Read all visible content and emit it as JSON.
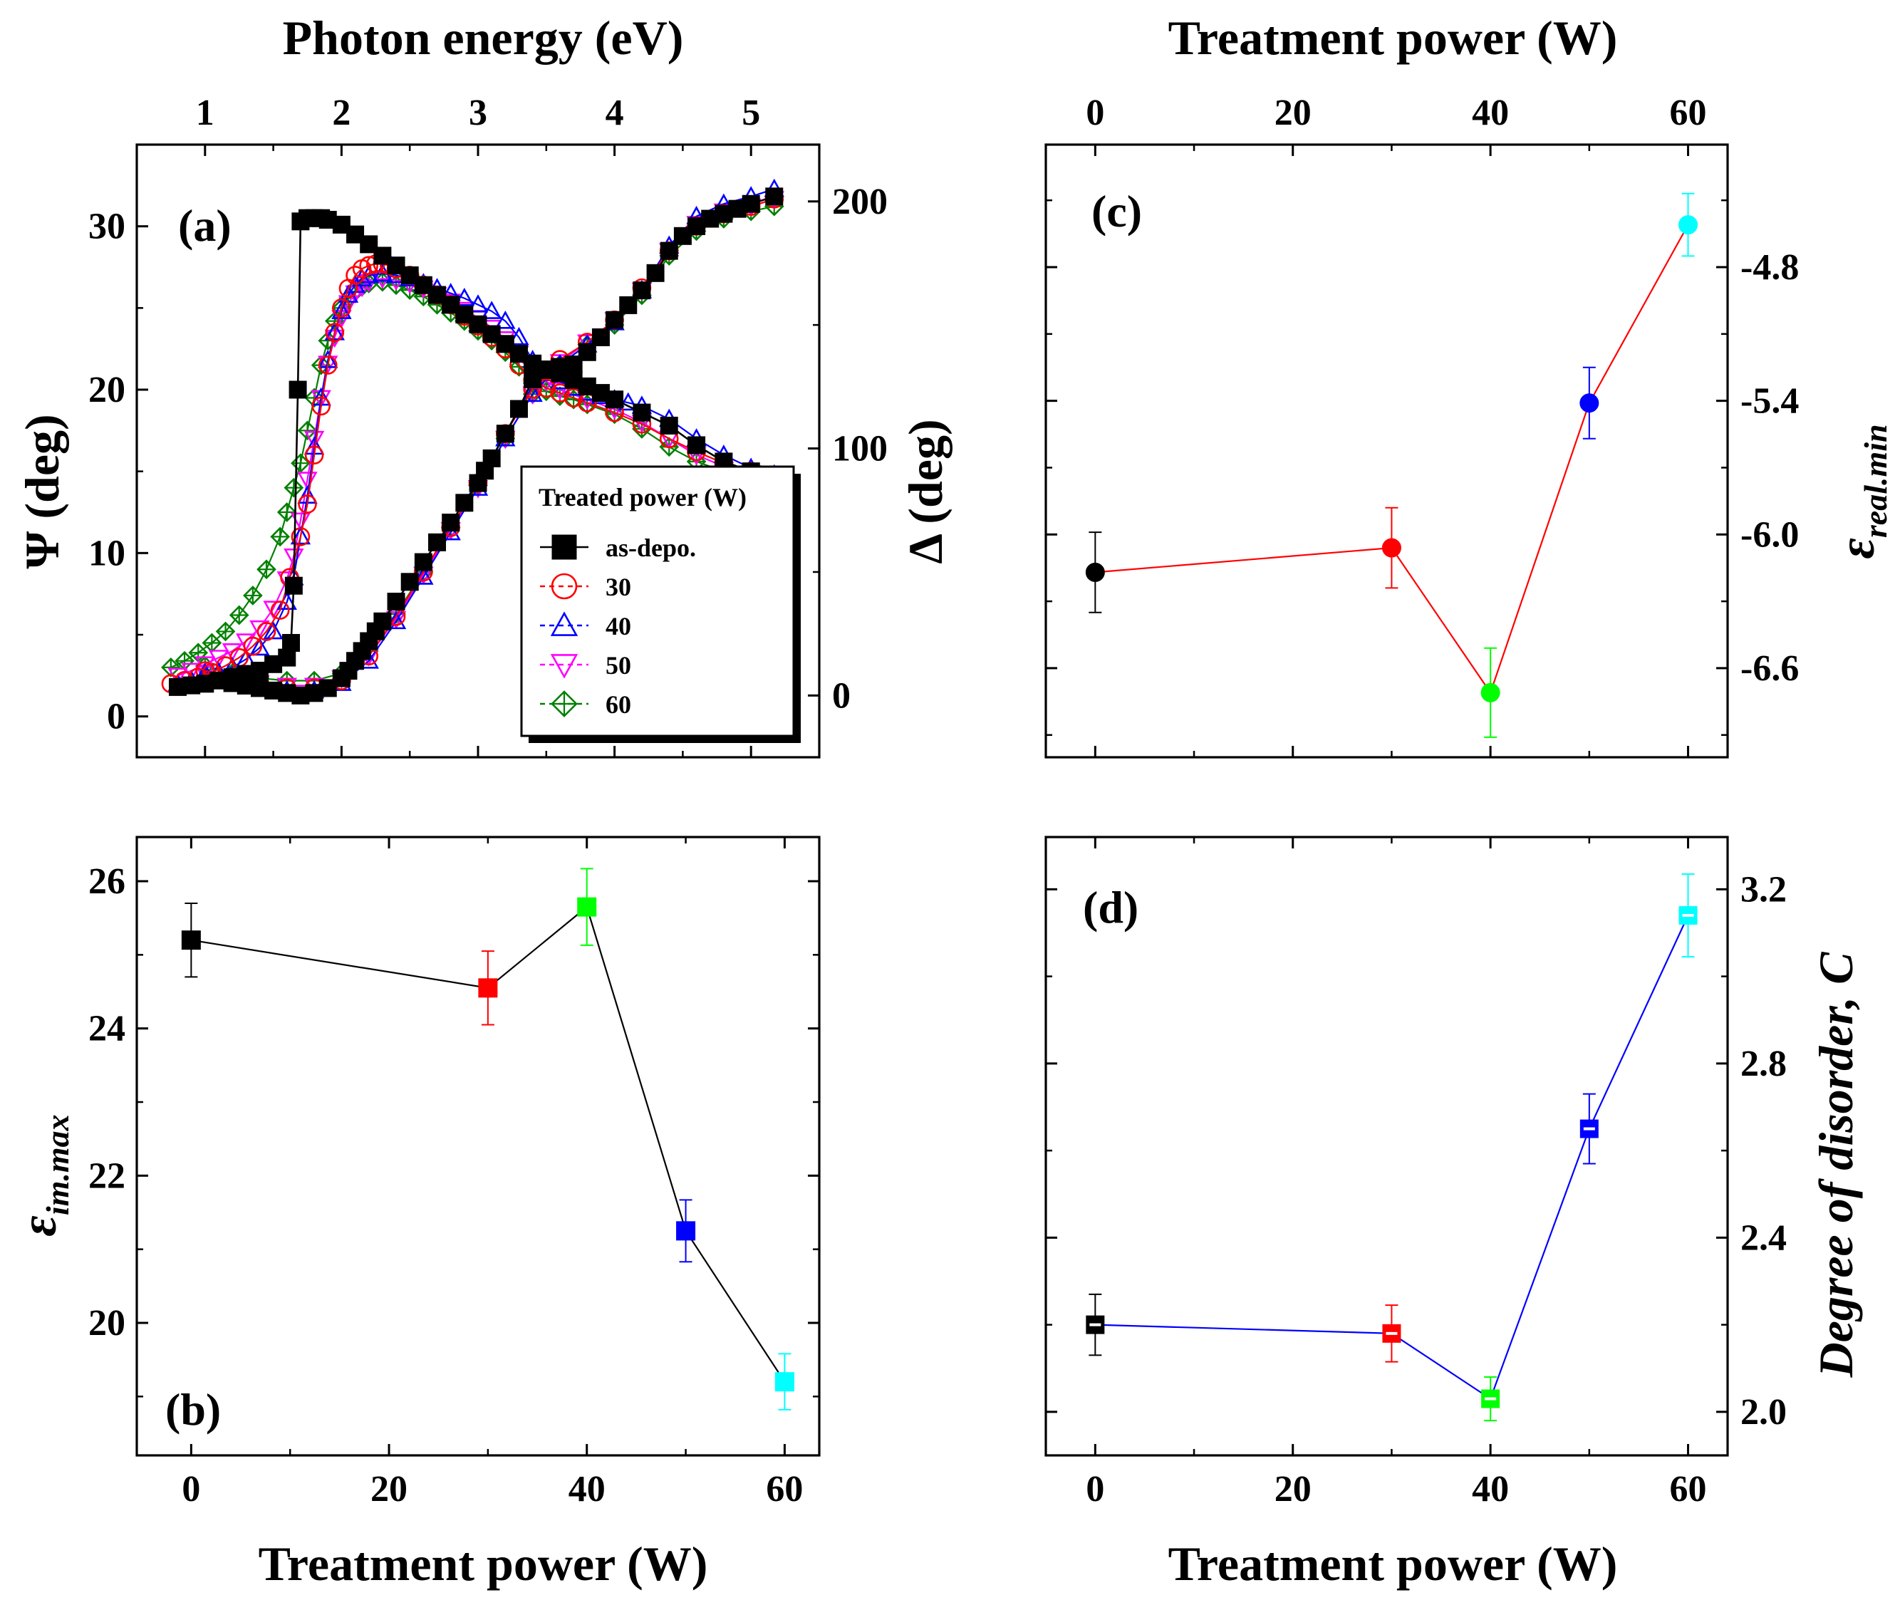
{
  "chart_data": [
    {
      "id": "a",
      "type": "scatter",
      "panel_label": "(a)",
      "title": "",
      "top_xlabel": "Photon energy (eV)",
      "ylabel_left": "Ψ (deg)",
      "ylabel_right": "Δ (deg)",
      "xlim": [
        0.5,
        5.5
      ],
      "ylim_left": [
        -2.5,
        35
      ],
      "ylim_right": [
        -25,
        223
      ],
      "xticks": [
        1,
        2,
        3,
        4,
        5
      ],
      "xtick_labels": [
        "1",
        "2",
        "3",
        "4",
        "5"
      ],
      "yticks_left": [
        0,
        10,
        20,
        30
      ],
      "ytick_labels_left": [
        "0",
        "10",
        "20",
        "30"
      ],
      "yticks_right": [
        0,
        100,
        200
      ],
      "ytick_labels_right": [
        "0",
        "100",
        "200"
      ],
      "legend": {
        "title": "Treated power (W)",
        "position": "center-right",
        "entries": [
          "as-depo.",
          "30",
          "40",
          "50",
          "60"
        ]
      },
      "series": [
        {
          "name": "as-depo.",
          "quantity": "Psi",
          "axis": "left",
          "color": "#000000",
          "marker": "filled-square",
          "x": [
            0.8,
            0.9,
            1.0,
            1.1,
            1.2,
            1.3,
            1.4,
            1.5,
            1.6,
            1.63,
            1.65,
            1.68,
            1.7,
            1.75,
            1.8,
            1.85,
            1.9,
            2.0,
            2.1,
            2.2,
            2.3,
            2.4,
            2.5,
            2.6,
            2.7,
            2.8,
            2.9,
            3.0,
            3.1,
            3.2,
            3.3,
            3.4,
            3.5,
            3.6,
            3.7,
            3.8,
            3.9,
            4.0,
            4.2,
            4.4,
            4.6,
            4.8,
            5.0,
            5.17
          ],
          "y": [
            1.8,
            1.9,
            2.0,
            2.2,
            2.4,
            2.6,
            2.8,
            3.2,
            3.6,
            4.5,
            8.0,
            20.0,
            30.3,
            30.5,
            30.5,
            30.5,
            30.4,
            30.1,
            29.5,
            28.9,
            28.2,
            27.6,
            27.0,
            26.4,
            25.8,
            25.2,
            24.6,
            24.0,
            23.4,
            22.8,
            22.2,
            21.6,
            21.2,
            21.0,
            20.6,
            20.2,
            19.8,
            19.4,
            18.6,
            17.8,
            16.6,
            15.6,
            15.0,
            14.6
          ]
        },
        {
          "name": "as-depo.",
          "quantity": "Delta",
          "axis": "right",
          "color": "#000000",
          "marker": "filled-square",
          "x": [
            1.2,
            1.3,
            1.4,
            1.5,
            1.6,
            1.7,
            1.8,
            1.9,
            2.0,
            2.05,
            2.1,
            2.15,
            2.2,
            2.25,
            2.3,
            2.4,
            2.5,
            2.6,
            2.7,
            2.8,
            2.9,
            3.0,
            3.05,
            3.1,
            3.2,
            3.3,
            3.4,
            3.5,
            3.6,
            3.7,
            3.8,
            3.9,
            4.0,
            4.1,
            4.2,
            4.3,
            4.4,
            4.5,
            4.6,
            4.7,
            4.8,
            4.9,
            5.0,
            5.17
          ],
          "y": [
            5,
            4,
            3,
            2,
            1,
            0,
            1,
            3,
            7,
            10,
            14,
            18,
            22,
            26,
            30,
            38,
            46,
            54,
            62,
            70,
            78,
            86,
            91,
            96,
            106,
            116,
            128,
            132,
            133,
            134,
            139,
            145,
            152,
            158,
            164,
            171,
            180,
            186,
            190,
            193,
            195,
            197,
            199,
            202
          ]
        },
        {
          "name": "30",
          "quantity": "Psi",
          "axis": "left",
          "color": "#ff0000",
          "marker": "open-circle",
          "x": [
            0.75,
            0.85,
            0.95,
            1.05,
            1.15,
            1.25,
            1.35,
            1.45,
            1.55,
            1.62,
            1.7,
            1.75,
            1.8,
            1.85,
            1.9,
            1.95,
            2.0,
            2.05,
            2.1,
            2.15,
            2.2,
            2.25,
            2.3,
            2.35,
            2.4,
            2.5,
            2.6,
            2.7,
            2.8,
            2.9,
            3.0,
            3.1,
            3.2,
            3.3,
            3.4,
            3.5,
            3.6,
            3.7,
            3.8,
            4.0,
            4.2,
            4.4,
            4.6,
            4.8,
            5.0,
            5.17
          ],
          "y": [
            2.0,
            2.2,
            2.4,
            2.7,
            3.1,
            3.6,
            4.3,
            5.2,
            6.5,
            8.5,
            11.0,
            13.0,
            16.0,
            19.0,
            21.5,
            23.5,
            25.0,
            26.2,
            27.0,
            27.4,
            27.6,
            27.7,
            27.7,
            27.6,
            27.4,
            27.0,
            26.4,
            25.8,
            25.2,
            24.5,
            23.9,
            23.2,
            22.5,
            21.5,
            20.6,
            20.1,
            19.8,
            19.5,
            19.2,
            18.6,
            17.9,
            17.0,
            16.2,
            15.5,
            15.0,
            14.6
          ]
        },
        {
          "name": "30",
          "quantity": "Delta",
          "axis": "right",
          "color": "#ff0000",
          "marker": "open-circle",
          "x": [
            1.0,
            1.2,
            1.4,
            1.6,
            1.8,
            2.0,
            2.2,
            2.4,
            2.6,
            2.8,
            3.0,
            3.2,
            3.4,
            3.6,
            3.8,
            4.0,
            4.2,
            4.4,
            4.6,
            4.8,
            5.0,
            5.17
          ],
          "y": [
            10,
            7,
            5,
            3,
            3,
            6,
            16,
            32,
            50,
            68,
            86,
            106,
            124,
            136,
            143,
            152,
            165,
            180,
            190,
            195,
            198,
            201
          ]
        },
        {
          "name": "40",
          "quantity": "Psi",
          "axis": "left",
          "color": "#0000ff",
          "marker": "open-triangle-up",
          "x": [
            0.8,
            0.9,
            1.0,
            1.1,
            1.2,
            1.3,
            1.4,
            1.5,
            1.6,
            1.65,
            1.7,
            1.75,
            1.8,
            1.85,
            1.9,
            1.95,
            2.0,
            2.05,
            2.1,
            2.15,
            2.2,
            2.3,
            2.4,
            2.5,
            2.6,
            2.7,
            2.8,
            2.9,
            3.0,
            3.1,
            3.2,
            3.3,
            3.4,
            3.5,
            3.6,
            3.7,
            3.8,
            3.9,
            4.0,
            4.1,
            4.2,
            4.4,
            4.6,
            4.8,
            5.0,
            5.17
          ],
          "y": [
            2.0,
            2.2,
            2.4,
            2.7,
            3.0,
            3.5,
            4.2,
            5.2,
            7.0,
            8.5,
            11.0,
            13.5,
            16.5,
            19.5,
            21.8,
            23.5,
            24.8,
            25.8,
            26.4,
            26.8,
            27.0,
            27.1,
            27.0,
            26.8,
            26.5,
            26.2,
            25.9,
            25.6,
            25.2,
            24.8,
            24.2,
            23.2,
            21.8,
            21.0,
            20.5,
            20.1,
            19.8,
            19.6,
            19.4,
            19.2,
            19.0,
            18.2,
            17.0,
            16.0,
            15.2,
            14.8
          ]
        },
        {
          "name": "40",
          "quantity": "Delta",
          "axis": "right",
          "color": "#0000ff",
          "marker": "open-triangle-up",
          "x": [
            1.0,
            1.2,
            1.4,
            1.6,
            1.8,
            2.0,
            2.2,
            2.4,
            2.6,
            2.8,
            3.0,
            3.2,
            3.4,
            3.6,
            3.8,
            4.0,
            4.2,
            4.4,
            4.6,
            4.8,
            5.0,
            5.17
          ],
          "y": [
            9,
            6,
            4,
            2,
            2,
            5,
            14,
            30,
            48,
            66,
            84,
            104,
            122,
            134,
            142,
            151,
            164,
            182,
            194,
            199,
            202,
            205
          ]
        },
        {
          "name": "50",
          "quantity": "Psi",
          "axis": "left",
          "color": "#ff00ff",
          "marker": "open-triangle-down",
          "x": [
            0.8,
            0.9,
            1.0,
            1.1,
            1.2,
            1.3,
            1.4,
            1.5,
            1.6,
            1.65,
            1.7,
            1.75,
            1.8,
            1.85,
            1.9,
            1.95,
            2.0,
            2.05,
            2.1,
            2.15,
            2.2,
            2.3,
            2.4,
            2.5,
            2.6,
            2.7,
            2.8,
            2.9,
            3.0,
            3.1,
            3.2,
            3.3,
            3.4,
            3.5,
            3.6,
            3.8,
            4.0,
            4.2,
            4.4,
            4.6,
            4.8,
            5.0,
            5.17
          ],
          "y": [
            2.5,
            2.8,
            3.2,
            3.6,
            4.0,
            4.6,
            5.4,
            6.6,
            8.4,
            9.8,
            12.0,
            14.5,
            17.0,
            19.5,
            21.6,
            23.2,
            24.4,
            25.3,
            25.9,
            26.3,
            26.6,
            26.8,
            26.7,
            26.5,
            26.2,
            25.8,
            25.4,
            24.9,
            24.4,
            23.8,
            23.1,
            22.2,
            21.2,
            20.5,
            20.0,
            19.4,
            18.8,
            18.0,
            17.0,
            16.0,
            15.3,
            14.9,
            14.6
          ]
        },
        {
          "name": "50",
          "quantity": "Delta",
          "axis": "right",
          "color": "#ff00ff",
          "marker": "open-triangle-down",
          "x": [
            1.0,
            1.2,
            1.4,
            1.6,
            1.8,
            2.0,
            2.2,
            2.4,
            2.6,
            2.8,
            3.0,
            3.2,
            3.4,
            3.6,
            3.8,
            4.0,
            4.2,
            4.4,
            4.6,
            4.8,
            5.0,
            5.17
          ],
          "y": [
            9,
            7,
            5,
            4,
            4,
            7,
            16,
            31,
            49,
            67,
            84,
            104,
            122,
            135,
            143,
            152,
            164,
            180,
            191,
            196,
            198,
            201
          ]
        },
        {
          "name": "60",
          "quantity": "Psi",
          "axis": "left",
          "color": "#008000",
          "marker": "open-diamond-cross",
          "x": [
            0.75,
            0.85,
            0.95,
            1.05,
            1.15,
            1.25,
            1.35,
            1.45,
            1.55,
            1.6,
            1.65,
            1.7,
            1.75,
            1.8,
            1.85,
            1.9,
            1.95,
            2.0,
            2.05,
            2.1,
            2.15,
            2.2,
            2.3,
            2.4,
            2.5,
            2.6,
            2.7,
            2.8,
            2.9,
            3.0,
            3.1,
            3.2,
            3.3,
            3.4,
            3.5,
            3.6,
            3.7,
            3.8,
            4.0,
            4.2,
            4.4,
            4.6,
            4.8,
            5.0,
            5.17
          ],
          "y": [
            3.0,
            3.4,
            3.9,
            4.5,
            5.2,
            6.2,
            7.4,
            9.0,
            11.0,
            12.5,
            14.0,
            15.5,
            17.5,
            19.5,
            21.5,
            23.0,
            24.2,
            25.0,
            25.6,
            26.0,
            26.3,
            26.5,
            26.6,
            26.4,
            26.1,
            25.7,
            25.2,
            24.7,
            24.2,
            23.6,
            23.0,
            22.3,
            21.4,
            20.4,
            19.9,
            19.6,
            19.4,
            19.1,
            18.5,
            17.6,
            16.5,
            15.6,
            15.0,
            14.7,
            14.5
          ]
        },
        {
          "name": "60",
          "quantity": "Delta",
          "axis": "right",
          "color": "#008000",
          "marker": "open-diamond-cross",
          "x": [
            1.0,
            1.2,
            1.4,
            1.6,
            1.8,
            2.0,
            2.2,
            2.4,
            2.6,
            2.8,
            3.0,
            3.2,
            3.4,
            3.6,
            3.8,
            4.0,
            4.2,
            4.4,
            4.6,
            4.8,
            5.0,
            5.17
          ],
          "y": [
            12,
            9,
            7,
            6,
            6,
            9,
            18,
            33,
            50,
            68,
            85,
            104,
            122,
            134,
            142,
            150,
            162,
            178,
            188,
            193,
            196,
            198
          ]
        }
      ]
    },
    {
      "id": "b",
      "type": "line",
      "panel_label": "(b)",
      "xlabel": "Treatment power (W)",
      "ylabel": "ε",
      "ylabel_subscript": "im.max",
      "xlim": [
        -5.5,
        63.5
      ],
      "ylim": [
        18.2,
        26.6
      ],
      "xticks": [
        0,
        20,
        40,
        60
      ],
      "xtick_labels": [
        "0",
        "20",
        "40",
        "60"
      ],
      "yticks": [
        20,
        22,
        24,
        26
      ],
      "ytick_labels": [
        "20",
        "22",
        "24",
        "26"
      ],
      "line_color": "#000000",
      "marker": "filled-square",
      "x": [
        0,
        30,
        40,
        50,
        60
      ],
      "values": [
        25.2,
        24.55,
        25.65,
        21.25,
        19.2
      ],
      "errors": [
        0.5,
        0.5,
        0.52,
        0.42,
        0.38
      ],
      "point_colors": [
        "#000000",
        "#ff0000",
        "#00ff00",
        "#0000ff",
        "#00ffff"
      ]
    },
    {
      "id": "c",
      "type": "line",
      "panel_label": "(c)",
      "top_xlabel": "Treatment power (W)",
      "ylabel": "ε",
      "ylabel_subscript": "real.min",
      "xlim": [
        -5,
        64
      ],
      "ylim": [
        -7.0,
        -4.25
      ],
      "xticks": [
        0,
        20,
        40,
        60
      ],
      "xtick_labels": [
        "0",
        "20",
        "40",
        "60"
      ],
      "yticks": [
        -6.6,
        -6.0,
        -5.4,
        -4.8
      ],
      "ytick_labels": [
        "-6.6",
        "-6.0",
        "-5.4",
        "-4.8"
      ],
      "line_color": "#ff0000",
      "marker": "filled-circle",
      "x": [
        0,
        30,
        40,
        50,
        60
      ],
      "values": [
        -6.17,
        -6.06,
        -6.71,
        -5.41,
        -4.61
      ],
      "errors": [
        0.18,
        0.18,
        0.2,
        0.16,
        0.14
      ],
      "point_colors": [
        "#000000",
        "#ff0000",
        "#00ff00",
        "#0000ff",
        "#00ffff"
      ]
    },
    {
      "id": "d",
      "type": "line",
      "panel_label": "(d)",
      "xlabel": "Treatment power (W)",
      "ylabel": "Degree of disorder, C",
      "xlim": [
        -5,
        64
      ],
      "ylim": [
        1.9,
        3.32
      ],
      "xticks": [
        0,
        20,
        40,
        60
      ],
      "xtick_labels": [
        "0",
        "20",
        "40",
        "60"
      ],
      "yticks": [
        2.0,
        2.4,
        2.8,
        3.2
      ],
      "ytick_labels": [
        "2.0",
        "2.4",
        "2.8",
        "3.2"
      ],
      "line_color": "#0000ff",
      "marker": "half-filled-square",
      "x": [
        0,
        30,
        40,
        50,
        60
      ],
      "values": [
        2.2,
        2.18,
        2.03,
        2.65,
        3.14
      ],
      "errors": [
        0.07,
        0.065,
        0.05,
        0.08,
        0.095
      ],
      "point_colors": [
        "#000000",
        "#ff0000",
        "#00ff00",
        "#0000ff",
        "#00ffff"
      ]
    }
  ]
}
